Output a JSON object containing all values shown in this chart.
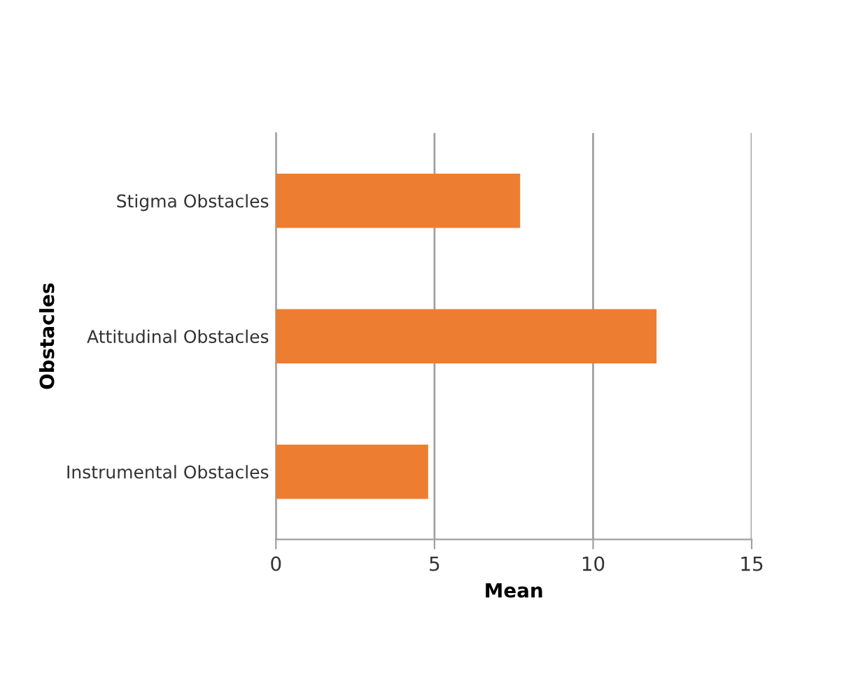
{
  "chart_data": {
    "type": "bar",
    "orientation": "horizontal",
    "xlabel": "Mean",
    "ylabel": "Obstacles",
    "categories": [
      "Stigma Obstacles",
      "Attitudinal Obstacles",
      "Instrumental Obstacles"
    ],
    "values": [
      7.7,
      12.0,
      4.8
    ],
    "color": "#ed7d31",
    "xlim": [
      0,
      15
    ],
    "xticks": [
      0,
      5,
      10,
      15
    ],
    "grid": "x",
    "legend": false
  }
}
